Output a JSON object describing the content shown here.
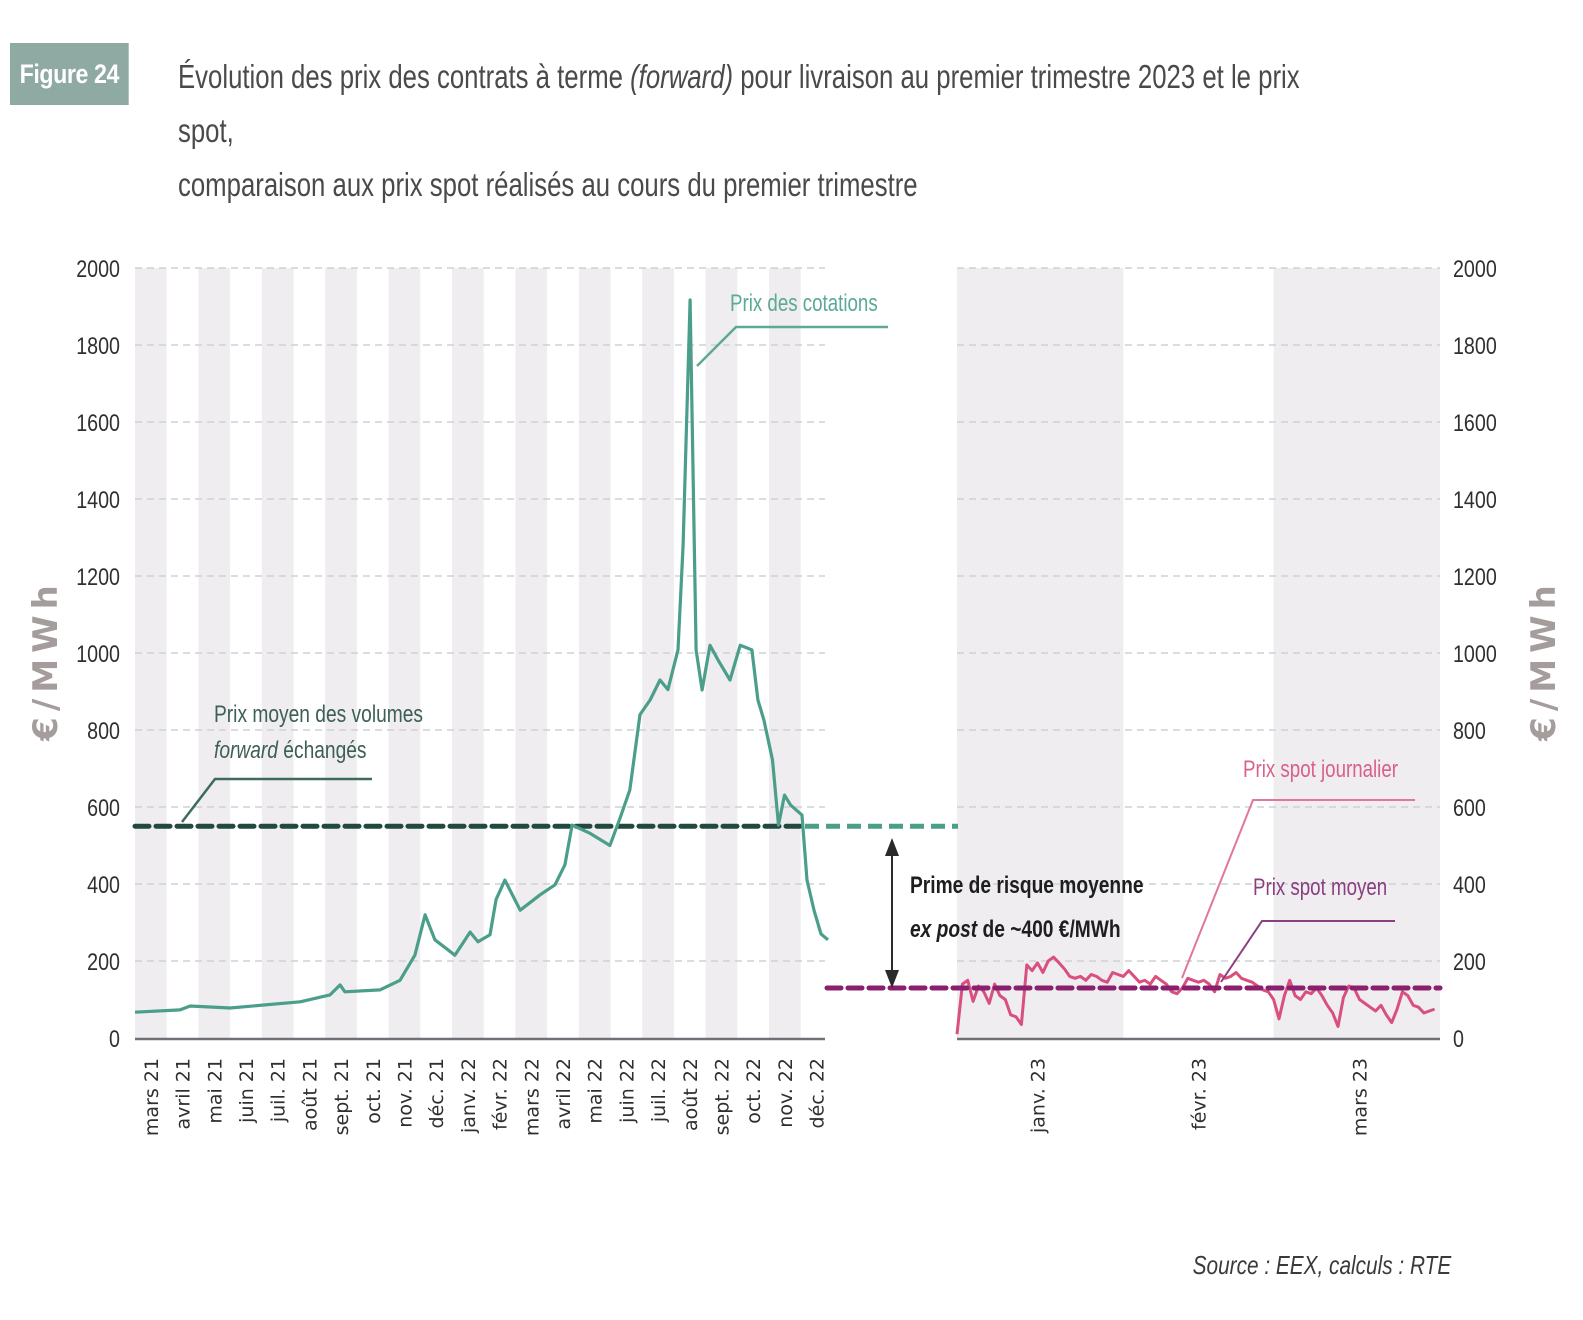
{
  "figure": {
    "badge": "Figure 24",
    "title_part1": "Évolution des prix des contrats à terme ",
    "title_italic": "(forward)",
    "title_part2": " pour livraison au premier trimestre 2023 et le prix spot,",
    "title_line2": "comparaison aux prix spot réalisés au cours du premier trimestre",
    "source": "Source : EEX, calculs : RTE"
  },
  "colors": {
    "forward_line": "#4a9e8a",
    "forward_avg_dark": "#22493f",
    "forward_avg_teal": "#4a9e8a",
    "spot_line": "#d9507f",
    "spot_avg": "#8a1f6e",
    "band_grey": "#efedef",
    "grid": "#cfd0d8",
    "axis": "#6f7078",
    "unit_label": "#a59c9c",
    "badge_bg": "#8fa9a3"
  },
  "chart_data": {
    "type": "line",
    "title": "Évolution des prix des contrats à terme (forward) pour livraison au premier trimestre 2023 et le prix spot, comparaison aux prix spot réalisés au cours du premier trimestre",
    "ylabel_left": "€/MWh",
    "ylabel_right": "€/MWh",
    "ylim": [
      0,
      2000
    ],
    "yticks": [
      0,
      200,
      400,
      600,
      800,
      1000,
      1200,
      1400,
      1600,
      1800,
      2000
    ],
    "grid": true,
    "panels": [
      {
        "name": "forward",
        "x_unit": "months since 1 March 2021",
        "xlim": [
          0,
          21.8
        ],
        "tick_labels": [
          "mars 21",
          "avril 21",
          "mai 21",
          "juin 21",
          "juil. 21",
          "août 21",
          "sept. 21",
          "oct. 21",
          "nov. 21",
          "déc. 21",
          "janv. 22",
          "févr. 22",
          "mars 22",
          "avril 22",
          "mai 22",
          "juin 22",
          "juil. 22",
          "août 22",
          "sept. 22",
          "oct. 22",
          "nov. 22",
          "déc. 22"
        ],
        "series": [
          {
            "name": "Prix des cotations",
            "x": [
              0,
              1.42,
              1.74,
              3.0,
              5.21,
              6.15,
              6.47,
              6.62,
              7.73,
              8.36,
              8.83,
              9.15,
              9.46,
              10.09,
              10.57,
              10.82,
              11.2,
              11.39,
              11.67,
              12.15,
              12.78,
              13.25,
              13.56,
              13.79,
              14.35,
              14.98,
              15.3,
              15.61,
              15.93,
              16.25,
              16.56,
              16.81,
              17.13,
              17.29,
              17.51,
              17.7,
              17.89,
              18.14,
              18.39,
              18.77,
              19.09,
              19.46,
              19.65,
              19.84,
              20.11,
              20.3,
              20.49,
              20.68,
              21.04,
              21.2,
              21.42,
              21.64,
              21.86
            ],
            "y": [
              67,
              73,
              83,
              78,
              94,
              112,
              138,
              120,
              125,
              150,
              215,
              320,
              255,
              215,
              275,
              250,
              268,
              360,
              410,
              332,
              372,
              398,
              450,
              553,
              532,
              500,
              571,
              644,
              840,
              878,
              930,
              905,
              1008,
              1280,
              1917,
              1008,
              904,
              1020,
              982,
              930,
              1020,
              1008,
              878,
              826,
              722,
              553,
              631,
              605,
              579,
              410,
              332,
              270,
              255
            ]
          },
          {
            "name": "Prix moyen des volumes forward échangés",
            "type": "hline",
            "value": 550
          }
        ]
      },
      {
        "name": "spot",
        "x_unit": "days since 1 January 2023",
        "xlim": [
          0,
          90
        ],
        "tick_labels": [
          "janv. 23",
          "févr. 23",
          "mars 23"
        ],
        "tick_positions": [
          15,
          45,
          75
        ],
        "series": [
          {
            "name": "Prix spot journalier",
            "x": [
              0,
              1,
              2,
              3,
              4,
              5,
              6,
              7,
              8,
              9,
              10,
              11,
              12,
              13,
              14,
              15,
              16,
              17,
              18,
              19,
              20,
              21,
              22,
              23,
              24,
              25,
              26,
              27,
              28,
              29,
              30,
              31,
              32,
              33,
              34,
              35,
              36,
              37,
              38,
              39,
              40,
              41,
              42,
              43,
              44,
              45,
              46,
              47,
              48,
              49,
              50,
              51,
              52,
              53,
              54,
              55,
              56,
              57,
              58,
              59,
              60,
              61,
              62,
              63,
              64,
              65,
              66,
              67,
              68,
              69,
              70,
              71,
              72,
              73,
              74,
              75,
              76,
              77,
              78,
              79,
              80,
              81,
              82,
              83,
              84,
              85,
              86,
              87,
              88,
              89
            ],
            "y": [
              10,
              140,
              150,
              95,
              135,
              120,
              90,
              140,
              110,
              100,
              60,
              55,
              35,
              190,
              175,
              195,
              170,
              200,
              210,
              195,
              180,
              160,
              155,
              160,
              150,
              165,
              160,
              150,
              145,
              170,
              165,
              160,
              175,
              160,
              145,
              150,
              140,
              160,
              150,
              140,
              120,
              115,
              130,
              155,
              150,
              145,
              150,
              140,
              120,
              165,
              155,
              160,
              170,
              155,
              150,
              145,
              135,
              125,
              120,
              100,
              50,
              110,
              150,
              110,
              100,
              120,
              115,
              130,
              110,
              85,
              65,
              30,
              105,
              135,
              130,
              100,
              90,
              80,
              70,
              85,
              60,
              40,
              75,
              120,
              110,
              85,
              80,
              65,
              70,
              75
            ]
          },
          {
            "name": "Prix spot moyen",
            "type": "hline",
            "value": 130
          }
        ]
      }
    ],
    "annotations": [
      {
        "text_line1": "Prix moyen des volumes",
        "text_line2_italic": "forward",
        "text_line2": " échangés"
      },
      {
        "text": "Prix des cotations"
      },
      {
        "text_line1": "Prime de risque moyenne",
        "text_line2_italic": "ex post",
        "text_line2": " de ~400 €/MWh",
        "from": 550,
        "to": 130
      },
      {
        "text": "Prix spot journalier"
      },
      {
        "text": "Prix spot moyen"
      }
    ]
  }
}
